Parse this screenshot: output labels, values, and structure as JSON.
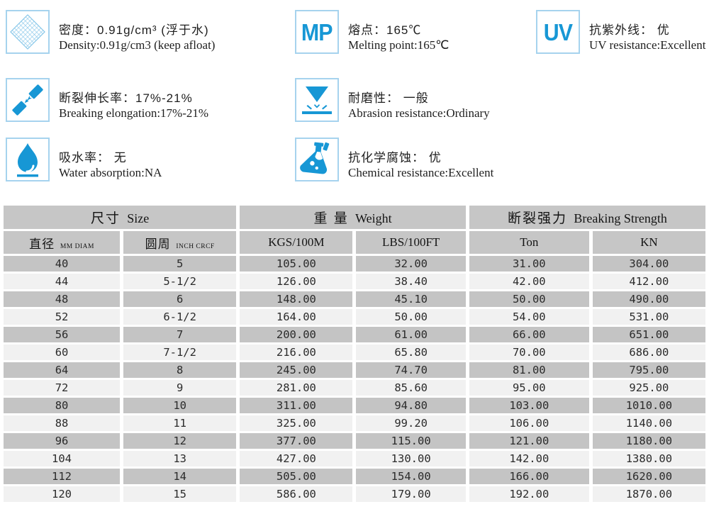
{
  "colors": {
    "accent_blue": "#1797d5",
    "icon_border_blue": "#a6d3ee",
    "header_gray": "#c6c6c6",
    "row_gray": "#c4c4c4",
    "row_light": "#f1f1f1"
  },
  "specs": [
    {
      "icon": "density-mesh-icon",
      "zh": "密度：0.91g/cm³ (浮于水)",
      "en": "Density:0.91g/cm3 (keep afloat)"
    },
    {
      "icon": "melting-point-icon",
      "glyph": "MP",
      "zh": "熔点：165℃",
      "en": "Melting point:165℃"
    },
    {
      "icon": "uv-icon",
      "glyph": "UV",
      "zh": "抗紫外线： 优",
      "en": "UV resistance:Excellent"
    },
    {
      "icon": "breaking-elongation-icon",
      "zh": "断裂伸长率：17%-21%",
      "en": "Breaking elongation:17%-21%"
    },
    {
      "icon": "abrasion-icon",
      "zh": "耐磨性： 一般",
      "en": "Abrasion resistance:Ordinary"
    },
    {
      "icon": "water-drop-icon",
      "zh": "吸水率： 无",
      "en": "Water absorption:NA"
    },
    {
      "icon": "chemical-flask-icon",
      "zh": "抗化学腐蚀： 优",
      "en": "Chemical resistance:Excellent"
    }
  ],
  "table": {
    "groups": [
      {
        "zh": "尺寸",
        "en": "Size"
      },
      {
        "zh": "重 量",
        "en": "Weight"
      },
      {
        "zh": "断裂强力",
        "en": "Breaking Strength"
      }
    ],
    "columns": [
      {
        "zh": "直径",
        "small": "MM DIAM"
      },
      {
        "zh": "圆周",
        "small": "INCH CRCF"
      },
      {
        "label": "KGS/100M"
      },
      {
        "label": "LBS/100FT"
      },
      {
        "label": "Ton"
      },
      {
        "label": "KN"
      }
    ],
    "rows": [
      [
        "40",
        "5",
        "105.00",
        "32.00",
        "31.00",
        "304.00"
      ],
      [
        "44",
        "5-1/2",
        "126.00",
        "38.40",
        "42.00",
        "412.00"
      ],
      [
        "48",
        "6",
        "148.00",
        "45.10",
        "50.00",
        "490.00"
      ],
      [
        "52",
        "6-1/2",
        "164.00",
        "50.00",
        "54.00",
        "531.00"
      ],
      [
        "56",
        "7",
        "200.00",
        "61.00",
        "66.00",
        "651.00"
      ],
      [
        "60",
        "7-1/2",
        "216.00",
        "65.80",
        "70.00",
        "686.00"
      ],
      [
        "64",
        "8",
        "245.00",
        "74.70",
        "81.00",
        "795.00"
      ],
      [
        "72",
        "9",
        "281.00",
        "85.60",
        "95.00",
        "925.00"
      ],
      [
        "80",
        "10",
        "311.00",
        "94.80",
        "103.00",
        "1010.00"
      ],
      [
        "88",
        "11",
        "325.00",
        "99.20",
        "106.00",
        "1140.00"
      ],
      [
        "96",
        "12",
        "377.00",
        "115.00",
        "121.00",
        "1180.00"
      ],
      [
        "104",
        "13",
        "427.00",
        "130.00",
        "142.00",
        "1380.00"
      ],
      [
        "112",
        "14",
        "505.00",
        "154.00",
        "166.00",
        "1620.00"
      ],
      [
        "120",
        "15",
        "586.00",
        "179.00",
        "192.00",
        "1870.00"
      ]
    ]
  }
}
